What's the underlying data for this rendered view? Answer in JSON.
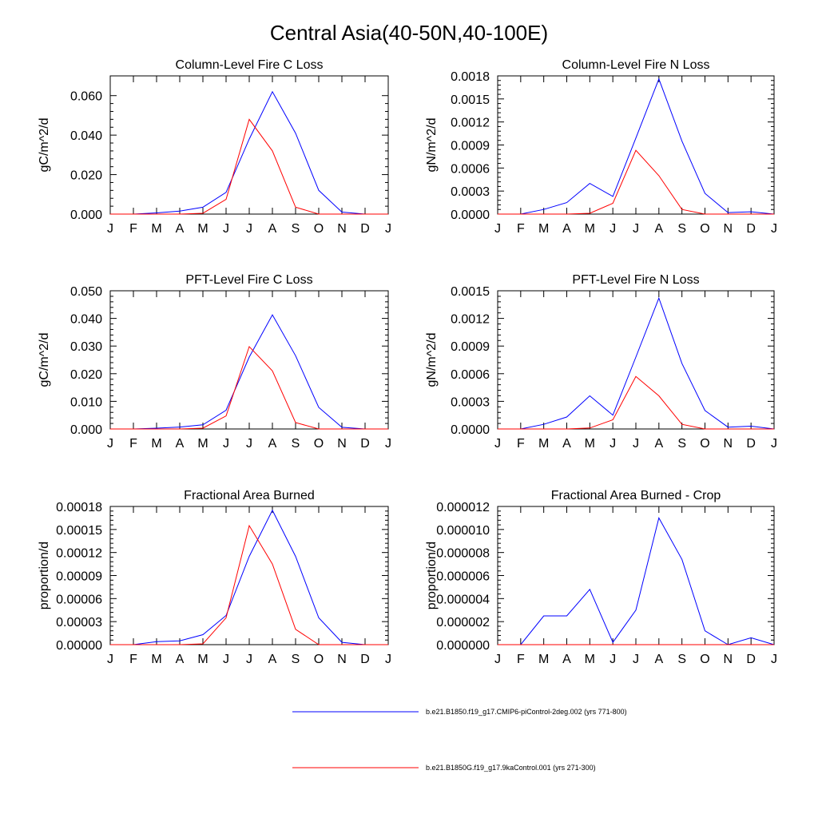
{
  "figure": {
    "title": "Central Asia(40-50N,40-100E)"
  },
  "colors": {
    "series_1": "#0000ff",
    "series_2": "#ff0000",
    "axis": "#000000"
  },
  "legend": [
    {
      "label": "b.e21.B1850.f19_g17.CMIP6-piControl-2deg.002 (yrs 771-800)",
      "color": "#0000ff"
    },
    {
      "label": "b.e21.B1850G.f19_g17.9kaControl.001 (yrs 271-300)",
      "color": "#ff0000"
    }
  ],
  "chart_data": [
    {
      "type": "line",
      "title": "Column-Level Fire C Loss",
      "ylabel": "gC/m^2/d",
      "xlabel": "",
      "categories": [
        "J",
        "F",
        "M",
        "A",
        "M",
        "J",
        "J",
        "A",
        "S",
        "O",
        "N",
        "D",
        "J"
      ],
      "ylim": [
        0,
        0.07
      ],
      "yticks": [
        0,
        0.02,
        0.04,
        0.06
      ],
      "ytick_labels": [
        "0.000",
        "0.020",
        "0.040",
        "0.060"
      ],
      "series": [
        {
          "name": "b.e21.B1850.f19_g17.CMIP6-piControl-2deg.002 (yrs 771-800)",
          "color": "#0000ff",
          "values": [
            0,
            0,
            0.0006,
            0.0015,
            0.0035,
            0.011,
            0.038,
            0.062,
            0.041,
            0.012,
            0.001,
            0,
            0
          ]
        },
        {
          "name": "b.e21.B1850G.f19_g17.9kaControl.001 (yrs 271-300)",
          "color": "#ff0000",
          "values": [
            0,
            0,
            0,
            0,
            0.0004,
            0.0075,
            0.048,
            0.032,
            0.0035,
            0,
            0,
            0,
            0
          ]
        }
      ]
    },
    {
      "type": "line",
      "title": "Column-Level Fire N Loss",
      "ylabel": "gN/m^2/d",
      "xlabel": "",
      "categories": [
        "J",
        "F",
        "M",
        "A",
        "M",
        "J",
        "J",
        "A",
        "S",
        "O",
        "N",
        "D",
        "J"
      ],
      "ylim": [
        0,
        0.0018
      ],
      "yticks": [
        0,
        0.0003,
        0.0006,
        0.0009,
        0.0012,
        0.0015,
        0.0018
      ],
      "ytick_labels": [
        "0.0000",
        "0.0003",
        "0.0006",
        "0.0009",
        "0.0012",
        "0.0015",
        "0.0018"
      ],
      "series": [
        {
          "name": "b.e21.B1850.f19_g17.CMIP6-piControl-2deg.002 (yrs 771-800)",
          "color": "#0000ff",
          "values": [
            0,
            0,
            6e-05,
            0.00015,
            0.0004,
            0.00023,
            0.00099,
            0.00176,
            0.00095,
            0.00027,
            2e-05,
            3e-05,
            0
          ]
        },
        {
          "name": "b.e21.B1850G.f19_g17.9kaControl.001 (yrs 271-300)",
          "color": "#ff0000",
          "values": [
            0,
            0,
            0,
            0,
            1e-05,
            0.00014,
            0.00083,
            0.0005,
            6e-05,
            0,
            0,
            0,
            0
          ]
        }
      ]
    },
    {
      "type": "line",
      "title": "PFT-Level Fire C Loss",
      "ylabel": "gC/m^2/d",
      "xlabel": "",
      "categories": [
        "J",
        "F",
        "M",
        "A",
        "M",
        "J",
        "J",
        "A",
        "S",
        "O",
        "N",
        "D",
        "J"
      ],
      "ylim": [
        0,
        0.05
      ],
      "yticks": [
        0,
        0.01,
        0.02,
        0.03,
        0.04,
        0.05
      ],
      "ytick_labels": [
        "0.000",
        "0.010",
        "0.020",
        "0.030",
        "0.040",
        "0.050"
      ],
      "series": [
        {
          "name": "b.e21.B1850.f19_g17.CMIP6-piControl-2deg.002 (yrs 771-800)",
          "color": "#0000ff",
          "values": [
            0,
            0,
            0.0003,
            0.0007,
            0.0015,
            0.0068,
            0.026,
            0.0413,
            0.0265,
            0.0078,
            0.0006,
            0,
            0
          ]
        },
        {
          "name": "b.e21.B1850G.f19_g17.9kaControl.001 (yrs 271-300)",
          "color": "#ff0000",
          "values": [
            0,
            0,
            0,
            0,
            0.0003,
            0.0047,
            0.0298,
            0.021,
            0.0023,
            0,
            0,
            0,
            0
          ]
        }
      ]
    },
    {
      "type": "line",
      "title": "PFT-Level Fire N Loss",
      "ylabel": "gN/m^2/d",
      "xlabel": "",
      "categories": [
        "J",
        "F",
        "M",
        "A",
        "M",
        "J",
        "J",
        "A",
        "S",
        "O",
        "N",
        "D",
        "J"
      ],
      "ylim": [
        0,
        0.0015
      ],
      "yticks": [
        0,
        0.0003,
        0.0006,
        0.0009,
        0.0012,
        0.0015
      ],
      "ytick_labels": [
        "0.0000",
        "0.0003",
        "0.0006",
        "0.0009",
        "0.0012",
        "0.0015"
      ],
      "series": [
        {
          "name": "b.e21.B1850.f19_g17.CMIP6-piControl-2deg.002 (yrs 771-800)",
          "color": "#0000ff",
          "values": [
            0,
            0,
            5e-05,
            0.00013,
            0.00036,
            0.00015,
            0.00078,
            0.00142,
            0.00071,
            0.0002,
            2e-05,
            3e-05,
            0
          ]
        },
        {
          "name": "b.e21.B1850G.f19_g17.9kaControl.001 (yrs 271-300)",
          "color": "#ff0000",
          "values": [
            0,
            0,
            0,
            0,
            1e-05,
            0.0001,
            0.00057,
            0.00036,
            5e-05,
            0,
            0,
            0,
            0
          ]
        }
      ]
    },
    {
      "type": "line",
      "title": "Fractional Area Burned",
      "ylabel": "proportion/d",
      "xlabel": "",
      "categories": [
        "J",
        "F",
        "M",
        "A",
        "M",
        "J",
        "J",
        "A",
        "S",
        "O",
        "N",
        "D",
        "J"
      ],
      "ylim": [
        0,
        0.00018
      ],
      "yticks": [
        0,
        3e-05,
        6e-05,
        9e-05,
        0.00012,
        0.00015,
        0.00018
      ],
      "ytick_labels": [
        "0.00000",
        "0.00003",
        "0.00006",
        "0.00009",
        "0.00012",
        "0.00015",
        "0.00018"
      ],
      "series": [
        {
          "name": "b.e21.B1850.f19_g17.CMIP6-piControl-2deg.002 (yrs 771-800)",
          "color": "#0000ff",
          "values": [
            0,
            0,
            4e-06,
            5e-06,
            1.3e-05,
            3.8e-05,
            0.000115,
            0.000175,
            0.000115,
            3.5e-05,
            3e-06,
            0,
            0
          ]
        },
        {
          "name": "b.e21.B1850G.f19_g17.9kaControl.001 (yrs 271-300)",
          "color": "#ff0000",
          "values": [
            0,
            0,
            0,
            0,
            1e-06,
            3.5e-05,
            0.000155,
            0.000105,
            2e-05,
            0,
            0,
            0,
            0
          ]
        }
      ]
    },
    {
      "type": "line",
      "title": "Fractional Area Burned - Crop",
      "ylabel": "proportion/d",
      "xlabel": "",
      "categories": [
        "J",
        "F",
        "M",
        "A",
        "M",
        "J",
        "J",
        "A",
        "S",
        "O",
        "N",
        "D",
        "J"
      ],
      "ylim": [
        0,
        1.2e-05
      ],
      "yticks": [
        0,
        2e-06,
        4e-06,
        6e-06,
        8e-06,
        1e-05,
        1.2e-05
      ],
      "ytick_labels": [
        "0.000000",
        "0.000002",
        "0.000004",
        "0.000006",
        "0.000008",
        "0.000010",
        "0.000012"
      ],
      "series": [
        {
          "name": "b.e21.B1850.f19_g17.CMIP6-piControl-2deg.002 (yrs 771-800)",
          "color": "#0000ff",
          "values": [
            0,
            0,
            2.5e-06,
            2.5e-06,
            4.8e-06,
            2e-07,
            3e-06,
            1.1e-05,
            7.4e-06,
            1.2e-06,
            0,
            6e-07,
            0
          ]
        },
        {
          "name": "b.e21.B1850G.f19_g17.9kaControl.001 (yrs 271-300)",
          "color": "#ff0000",
          "values": [
            0,
            0,
            0,
            0,
            0,
            0,
            0,
            0,
            0,
            0,
            0,
            0,
            0
          ]
        }
      ]
    }
  ]
}
